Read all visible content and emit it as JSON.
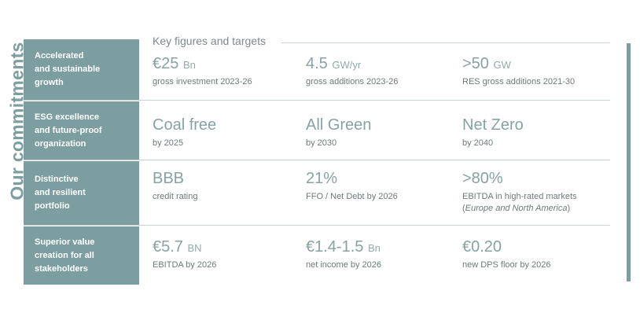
{
  "side_title": "Our commitments",
  "key_title": "Key figures and targets",
  "accent_color": "#7c9ea0",
  "rows": [
    {
      "label": "Accelerated\nand sustainable\ngrowth",
      "figures": [
        {
          "value": "€25",
          "unit": "Bn",
          "desc": "gross investment 2023-26"
        },
        {
          "value": "4.5",
          "unit": "GW/yr",
          "desc": "gross additions 2023-26"
        },
        {
          "value": ">50",
          "unit": "GW",
          "desc": "RES gross additions 2021-30"
        }
      ]
    },
    {
      "label": "ESG excellence\nand future-proof\norganization",
      "figures": [
        {
          "value": "Coal free",
          "unit": "",
          "desc": "by 2025"
        },
        {
          "value": "All Green",
          "unit": "",
          "desc": "by 2030"
        },
        {
          "value": "Net Zero",
          "unit": "",
          "desc": "by 2040"
        }
      ]
    },
    {
      "label": "Distinctive\nand resilient\nportfolio",
      "figures": [
        {
          "value": "BBB",
          "unit": "",
          "desc": "credit rating"
        },
        {
          "value": "21%",
          "unit": "",
          "desc": "FFO / Net Debt by 2026"
        },
        {
          "value": ">80%",
          "unit": "",
          "desc": "EBITDA in high-rated markets",
          "desc2_open": "(",
          "desc2_italic": "Europe and North America",
          "desc2_close": ")"
        }
      ]
    },
    {
      "label": "Superior value\ncreation for all\nstakeholders",
      "figures": [
        {
          "value": "€5.7",
          "unit": "BN",
          "desc": "EBITDA by 2026"
        },
        {
          "value": "€1.4-1.5",
          "unit": "Bn",
          "desc": "net income by 2026"
        },
        {
          "value": "€0.20",
          "unit": "",
          "desc": "new DPS floor by 2026"
        }
      ]
    }
  ]
}
